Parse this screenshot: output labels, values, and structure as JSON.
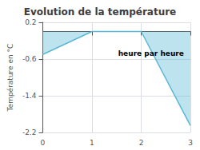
{
  "chart_data": {
    "type": "line",
    "title": "Evolution de la température",
    "ylabel": "Température en °C",
    "annotations": [
      {
        "text": "heure par heure",
        "x": 2.2,
        "y": -0.48
      }
    ],
    "x": [
      0,
      1,
      2,
      3
    ],
    "values": [
      -0.5,
      0.0,
      0.0,
      -2.05
    ],
    "color": "#5ab8d4",
    "xlim": [
      0,
      3
    ],
    "xticks": [
      0,
      1,
      2,
      3
    ],
    "ylim": [
      -2.2,
      0.2
    ],
    "yticks": [
      0.2,
      -0.6,
      -1.4,
      -2.2
    ],
    "grid": true
  }
}
